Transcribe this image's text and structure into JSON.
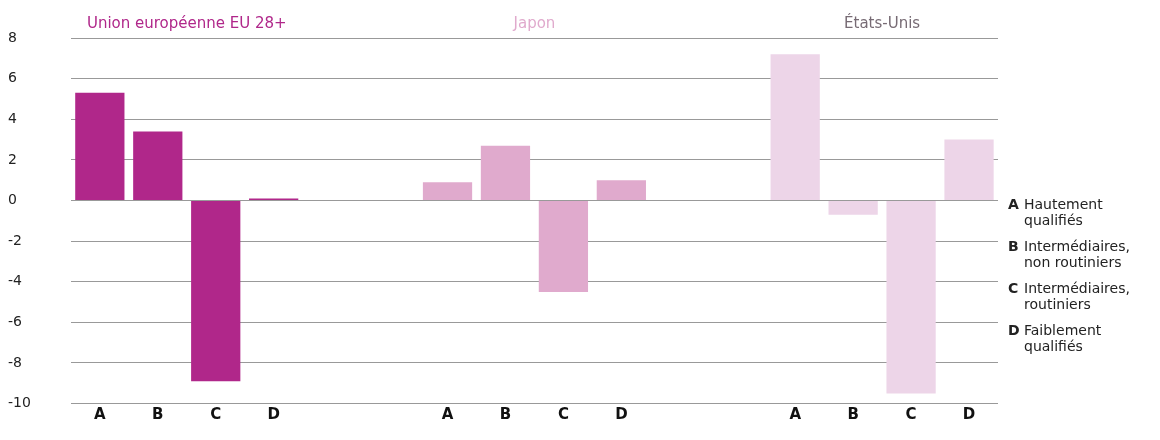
{
  "chart_data": {
    "type": "bar",
    "categories": [
      "A",
      "B",
      "C",
      "D",
      null,
      null,
      "A",
      "B",
      "C",
      "D",
      null,
      null,
      "A",
      "B",
      "C",
      "D"
    ],
    "series": [
      {
        "name": "Union européenne EU 28+",
        "color": "#b0278a",
        "values": [
          5.3,
          3.4,
          -8.9,
          0.1,
          null,
          null,
          null,
          null,
          null,
          null,
          null,
          null,
          null,
          null,
          null,
          null
        ]
      },
      {
        "name": "Japon",
        "color": "#e0aacd",
        "values": [
          null,
          null,
          null,
          null,
          null,
          null,
          0.9,
          2.7,
          -4.5,
          1.0,
          null,
          null,
          null,
          null,
          null,
          null
        ]
      },
      {
        "name": "États-Unis",
        "color": "#edd5e8",
        "values": [
          null,
          null,
          null,
          null,
          null,
          null,
          null,
          null,
          null,
          null,
          null,
          null,
          7.2,
          -0.7,
          -9.5,
          3.0
        ]
      }
    ],
    "ylim": [
      -10,
      8
    ],
    "yticks": [
      -10,
      -8,
      -6,
      -4,
      -2,
      0,
      2,
      4,
      6,
      8
    ],
    "grid": "y",
    "annotations": [
      "A Hautement qualifiés",
      "B Intermédiaires, non routiniers",
      "C Intermédiaires, routiniers",
      "D Faiblement qualifiés"
    ]
  }
}
